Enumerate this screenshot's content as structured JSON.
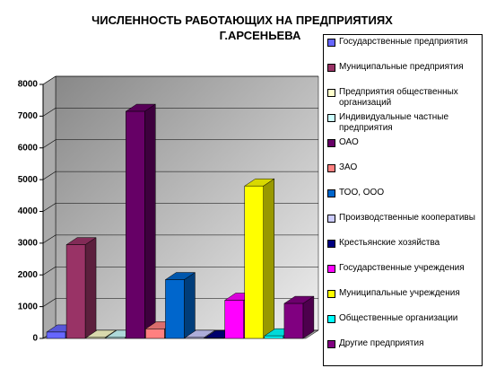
{
  "chart_data": {
    "type": "bar3d",
    "title": [
      "ЧИСЛЕННОСТЬ РАБОТАЮЩИХ НА ПРЕДПРИЯТИЯХ",
      "Г.АРСЕНЬЕВА"
    ],
    "ylim": [
      0,
      8000
    ],
    "yticks": [
      0,
      1000,
      2000,
      3000,
      4000,
      5000,
      6000,
      7000,
      8000
    ],
    "grid": true,
    "legend": "right",
    "series": [
      {
        "name": "Государственные предприятия",
        "color": "#6666ff",
        "values": [
          200
        ]
      },
      {
        "name": "Муниципальные предприятия",
        "color": "#993366",
        "values": [
          2950
        ]
      },
      {
        "name": "Предприятия общественных организаций",
        "color": "#ffffcc",
        "values": [
          30
        ]
      },
      {
        "name": "Индивидуальные частные предприятия",
        "color": "#ccffff",
        "values": [
          30
        ]
      },
      {
        "name": "ОАО",
        "color": "#660066",
        "values": [
          7150
        ]
      },
      {
        "name": "ЗАО",
        "color": "#ff8080",
        "values": [
          300
        ]
      },
      {
        "name": "ТОО, ООО",
        "color": "#0066cc",
        "values": [
          1850
        ]
      },
      {
        "name": "Производственные кооперативы",
        "color": "#ccccff",
        "values": [
          30
        ]
      },
      {
        "name": "Крестьянские хозяйства",
        "color": "#000080",
        "values": [
          20
        ]
      },
      {
        "name": "Государственные учреждения",
        "color": "#ff00ff",
        "values": [
          1200
        ]
      },
      {
        "name": "Муниципальные учреждения",
        "color": "#ffff00",
        "values": [
          4800
        ]
      },
      {
        "name": "Общественные организации",
        "color": "#00ffff",
        "values": [
          80
        ]
      },
      {
        "name": "Другие предприятия",
        "color": "#800080",
        "values": [
          1100
        ]
      }
    ]
  }
}
